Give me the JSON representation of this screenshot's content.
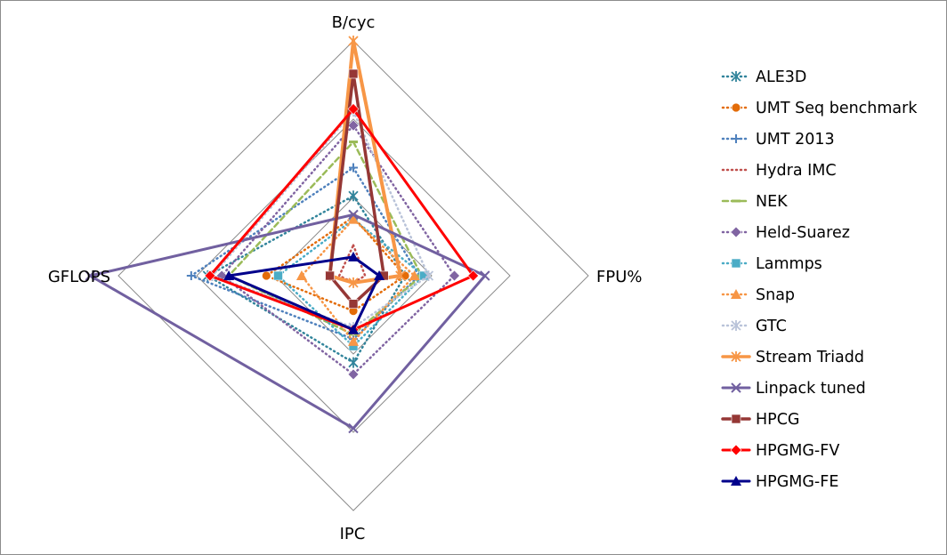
{
  "chart_data": {
    "type": "radar",
    "axes": [
      "B/cyc",
      "FPU%",
      "IPC",
      "GFLOPS"
    ],
    "rings": 3,
    "scale_max": 1.0,
    "grid": true,
    "legend_position": "right",
    "series": [
      {
        "name": "ALE3D",
        "color": "#31849b",
        "style": "dot",
        "marker": "star",
        "width": 2.5,
        "values": [
          0.34,
          0.22,
          0.37,
          0.62
        ]
      },
      {
        "name": "UMT Seq benchmark",
        "color": "#e36c09",
        "style": "dot",
        "marker": "circle",
        "width": 2.5,
        "values": [
          0.25,
          0.22,
          0.15,
          0.37
        ]
      },
      {
        "name": "UMT 2013",
        "color": "#4f81bd",
        "style": "dot",
        "marker": "plus",
        "width": 2.5,
        "values": [
          0.46,
          0.28,
          0.27,
          0.69
        ]
      },
      {
        "name": "Hydra IMC",
        "color": "#c0504d",
        "style": "dot",
        "marker": "none",
        "width": 2.5,
        "values": [
          0.13,
          0.05,
          0.03,
          0.06
        ]
      },
      {
        "name": "NEK",
        "color": "#9bbb59",
        "style": "dash",
        "marker": "dash",
        "width": 2.5,
        "values": [
          0.57,
          0.29,
          0.25,
          0.53
        ]
      },
      {
        "name": "Held-Suarez",
        "color": "#8064a2",
        "style": "dot",
        "marker": "diamond",
        "width": 2.5,
        "values": [
          0.64,
          0.43,
          0.42,
          0.56
        ]
      },
      {
        "name": "Lammps",
        "color": "#4bacc6",
        "style": "dot",
        "marker": "square",
        "width": 2.5,
        "values": [
          0.24,
          0.3,
          0.3,
          0.32
        ]
      },
      {
        "name": "Snap",
        "color": "#f79646",
        "style": "dot",
        "marker": "triangle",
        "width": 2.5,
        "values": [
          0.24,
          0.26,
          0.28,
          0.22
        ]
      },
      {
        "name": "GTC",
        "color": "#b9c3d9",
        "style": "dot",
        "marker": "star",
        "width": 2.5,
        "values": [
          0.7,
          0.32,
          0.22,
          0.6
        ]
      },
      {
        "name": "Stream Triadd",
        "color": "#f79646",
        "style": "solid",
        "marker": "star",
        "width": 4,
        "values": [
          1.0,
          0.2,
          0.03,
          0.1
        ]
      },
      {
        "name": "Linpack tuned",
        "color": "#7160a0",
        "style": "solid",
        "marker": "x",
        "width": 3,
        "values": [
          0.26,
          0.56,
          0.65,
          1.12
        ]
      },
      {
        "name": "HPCG",
        "color": "#953735",
        "style": "solid",
        "marker": "square",
        "width": 3.5,
        "values": [
          0.86,
          0.13,
          0.12,
          0.1
        ]
      },
      {
        "name": "HPGMG-FV",
        "color": "#ff0000",
        "style": "solid",
        "marker": "diamond",
        "width": 3,
        "values": [
          0.71,
          0.51,
          0.23,
          0.61
        ]
      },
      {
        "name": "HPGMG-FE",
        "color": "#00008b",
        "style": "solid",
        "marker": "triangle",
        "width": 3,
        "values": [
          0.08,
          0.11,
          0.23,
          0.53
        ]
      }
    ]
  }
}
